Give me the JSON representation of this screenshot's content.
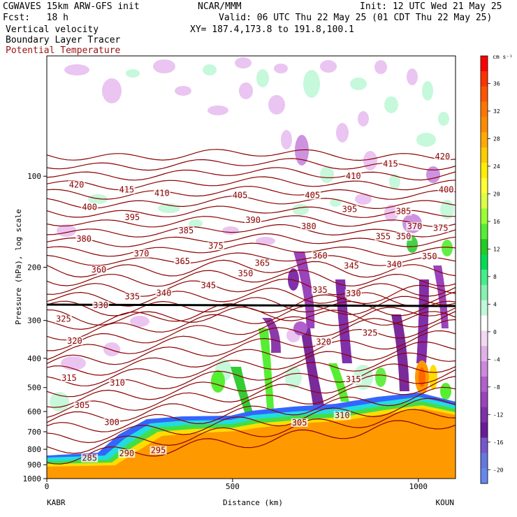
{
  "header": {
    "model": "CGWAVES 15km ARW-GFS init",
    "org": "NCAR/MMM",
    "init": "Init: 12 UTC Wed 21 May 25",
    "fcst": "Fcst:   18 h",
    "valid": "Valid: 06 UTC Thu 22 May 25 (01 CDT Thu 22 May 25)",
    "field1": "Vertical velocity",
    "xy": "XY= 187.4,173.8 to 191.8,100.1",
    "field2": "Boundary Layer Tracer",
    "field3": "Potential Temperature"
  },
  "colors": {
    "theta": "#8b0000",
    "tropopause": "#000000",
    "updraft_green": "#33cc33",
    "downdraft_purple": "#7a2a9a",
    "boundary_layer_orange": "#ff9900"
  },
  "chart_data": {
    "type": "heatmap",
    "title": "",
    "xlabel": "Distance (km)",
    "ylabel": "Pressure (hPa), log scale",
    "x_range": [
      0,
      1100
    ],
    "x_ticks": [
      "0",
      "500",
      "1000"
    ],
    "y_range_hPa": [
      1000,
      40
    ],
    "y_scale": "log",
    "y_ticks": [
      "100",
      "200",
      "300",
      "400",
      "500",
      "600",
      "700",
      "800",
      "900",
      "1000"
    ],
    "endpoint_left": "KABR",
    "endpoint_right": "KOUN",
    "colorbar": {
      "unit": "cm s⁻¹",
      "labels": [
        "36",
        "32",
        "28",
        "24",
        "20",
        "16",
        "12",
        "8",
        "4",
        "0",
        "-4",
        "-8",
        "-12",
        "-16",
        "-20"
      ],
      "colors": [
        "#ff0000",
        "#ff3300",
        "#ff5500",
        "#ff7700",
        "#ff8c00",
        "#ffaa00",
        "#ffcc00",
        "#ffee00",
        "#ffff33",
        "#ddff44",
        "#99ff33",
        "#55ee33",
        "#22cc22",
        "#00dd55",
        "#44ee88",
        "#88f0b0",
        "#c0f8d8",
        "#ffffff",
        "#f2d8f2",
        "#e0b0e8",
        "#cc88dd",
        "#b060cc",
        "#9944bb",
        "#8030aa",
        "#6a1a99",
        "#7755cc",
        "#6677dd",
        "#6688ee"
      ]
    },
    "theta_labels": [
      {
        "value": "420",
        "x": 80,
        "p": 108
      },
      {
        "value": "415",
        "x": 215,
        "p": 112
      },
      {
        "value": "410",
        "x": 310,
        "p": 115
      },
      {
        "value": "405",
        "x": 520,
        "p": 117
      },
      {
        "value": "400",
        "x": 115,
        "p": 128
      },
      {
        "value": "395",
        "x": 230,
        "p": 138
      },
      {
        "value": "390",
        "x": 555,
        "p": 141
      },
      {
        "value": "385",
        "x": 375,
        "p": 153
      },
      {
        "value": "380",
        "x": 100,
        "p": 163
      },
      {
        "value": "375",
        "x": 455,
        "p": 172
      },
      {
        "value": "370",
        "x": 255,
        "p": 182
      },
      {
        "value": "365",
        "x": 365,
        "p": 193
      },
      {
        "value": "360",
        "x": 140,
        "p": 206
      },
      {
        "value": "350",
        "x": 535,
        "p": 212
      },
      {
        "value": "345",
        "x": 435,
        "p": 232
      },
      {
        "value": "340",
        "x": 315,
        "p": 246
      },
      {
        "value": "335",
        "x": 230,
        "p": 253
      },
      {
        "value": "330",
        "x": 145,
        "p": 270
      },
      {
        "value": "325",
        "x": 45,
        "p": 300
      },
      {
        "value": "320",
        "x": 75,
        "p": 354
      },
      {
        "value": "315",
        "x": 60,
        "p": 470
      },
      {
        "value": "310",
        "x": 190,
        "p": 487
      },
      {
        "value": "305",
        "x": 95,
        "p": 578
      },
      {
        "value": "300",
        "x": 175,
        "p": 658
      },
      {
        "value": "295",
        "x": 300,
        "p": 815
      },
      {
        "value": "290",
        "x": 215,
        "p": 835
      },
      {
        "value": "285",
        "x": 115,
        "p": 865
      },
      {
        "value": "305",
        "x": 680,
        "p": 660
      },
      {
        "value": "310",
        "x": 795,
        "p": 625
      },
      {
        "value": "315",
        "x": 825,
        "p": 475
      },
      {
        "value": "320",
        "x": 745,
        "p": 357
      },
      {
        "value": "325",
        "x": 870,
        "p": 333
      },
      {
        "value": "330",
        "x": 825,
        "p": 247
      },
      {
        "value": "335",
        "x": 735,
        "p": 240
      },
      {
        "value": "340",
        "x": 935,
        "p": 198
      },
      {
        "value": "345",
        "x": 820,
        "p": 200
      },
      {
        "value": "350",
        "x": 1030,
        "p": 186
      },
      {
        "value": "350",
        "x": 960,
        "p": 160
      },
      {
        "value": "355",
        "x": 905,
        "p": 160
      },
      {
        "value": "360",
        "x": 735,
        "p": 185
      },
      {
        "value": "365",
        "x": 580,
        "p": 196
      },
      {
        "value": "370",
        "x": 990,
        "p": 148
      },
      {
        "value": "375",
        "x": 1060,
        "p": 150
      },
      {
        "value": "380",
        "x": 705,
        "p": 148
      },
      {
        "value": "385",
        "x": 960,
        "p": 132
      },
      {
        "value": "395",
        "x": 815,
        "p": 130
      },
      {
        "value": "400",
        "x": 1075,
        "p": 112
      },
      {
        "value": "405",
        "x": 715,
        "p": 117
      },
      {
        "value": "410",
        "x": 825,
        "p": 101
      },
      {
        "value": "415",
        "x": 925,
        "p": 92
      },
      {
        "value": "420",
        "x": 1065,
        "p": 87
      }
    ]
  }
}
